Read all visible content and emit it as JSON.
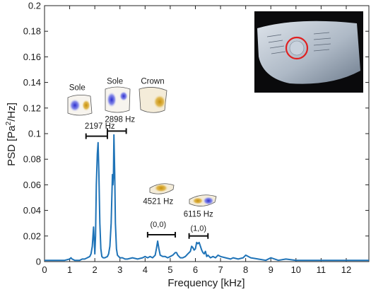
{
  "chart_data": {
    "type": "line",
    "xlabel": "Frequency [kHz]",
    "ylabel_prefix": "PSD [Pa",
    "ylabel_sup": "2",
    "ylabel_suffix": "/Hz]",
    "xlim": [
      0,
      12.9
    ],
    "ylim": [
      0,
      0.2
    ],
    "xticks": [
      0,
      1,
      2,
      3,
      4,
      5,
      6,
      7,
      8,
      9,
      10,
      11,
      12
    ],
    "yticks": [
      0,
      0.02,
      0.04,
      0.06,
      0.08,
      0.1,
      0.12,
      0.14,
      0.16,
      0.18,
      0.2
    ],
    "ytick_labels": [
      "0",
      "0.02",
      "0.04",
      "0.06",
      "0.08",
      "0.1",
      "0.12",
      "0.14",
      "0.16",
      "0.18",
      "0.2"
    ],
    "grid": false,
    "line_color": "#1f73b7",
    "series": [
      {
        "x": [
          0,
          0.3,
          0.5,
          0.8,
          1.0,
          1.05,
          1.1,
          1.2,
          1.4,
          1.5,
          1.6,
          1.7,
          1.8,
          1.85,
          1.9,
          1.95,
          2.0,
          2.03,
          2.06,
          2.1,
          2.13,
          2.16,
          2.2,
          2.24,
          2.28,
          2.33,
          2.4,
          2.5,
          2.55,
          2.6,
          2.65,
          2.7,
          2.72,
          2.74,
          2.76,
          2.79,
          2.82,
          2.86,
          2.9,
          2.95,
          3.0,
          3.1,
          3.2,
          3.3,
          3.5,
          3.7,
          3.9,
          4.0,
          4.1,
          4.2,
          4.3,
          4.4,
          4.45,
          4.5,
          4.55,
          4.6,
          4.7,
          4.8,
          4.9,
          5.0,
          5.1,
          5.2,
          5.25,
          5.3,
          5.35,
          5.4,
          5.5,
          5.6,
          5.7,
          5.8,
          5.85,
          5.9,
          5.95,
          6.0,
          6.05,
          6.1,
          6.15,
          6.2,
          6.25,
          6.3,
          6.35,
          6.4,
          6.45,
          6.5,
          6.6,
          6.7,
          6.8,
          6.9,
          7.0,
          7.2,
          7.4,
          7.5,
          7.7,
          7.9,
          8.0,
          8.2,
          8.5,
          8.8,
          9.0,
          9.3,
          9.6,
          10.0,
          10.5,
          11.0,
          11.5,
          12.0,
          12.5,
          12.9
        ],
        "y": [
          0.001,
          0.001,
          0.001,
          0.001,
          0.002,
          0.003,
          0.002,
          0.001,
          0.001,
          0.002,
          0.002,
          0.003,
          0.004,
          0.006,
          0.012,
          0.027,
          0.006,
          0.02,
          0.06,
          0.084,
          0.093,
          0.07,
          0.03,
          0.01,
          0.004,
          0.003,
          0.003,
          0.004,
          0.006,
          0.012,
          0.03,
          0.068,
          0.06,
          0.066,
          0.099,
          0.07,
          0.03,
          0.01,
          0.005,
          0.004,
          0.003,
          0.003,
          0.002,
          0.002,
          0.003,
          0.002,
          0.003,
          0.004,
          0.003,
          0.004,
          0.003,
          0.005,
          0.01,
          0.016,
          0.01,
          0.005,
          0.004,
          0.004,
          0.003,
          0.004,
          0.005,
          0.007,
          0.007,
          0.005,
          0.004,
          0.003,
          0.003,
          0.004,
          0.006,
          0.008,
          0.012,
          0.011,
          0.009,
          0.01,
          0.015,
          0.014,
          0.015,
          0.012,
          0.009,
          0.007,
          0.006,
          0.008,
          0.004,
          0.005,
          0.003,
          0.004,
          0.003,
          0.005,
          0.004,
          0.003,
          0.002,
          0.003,
          0.002,
          0.003,
          0.005,
          0.003,
          0.002,
          0.001,
          0.003,
          0.001,
          0.002,
          0.001,
          0.001,
          0.001,
          0.001,
          0.001,
          0.001,
          0.001
        ]
      }
    ],
    "annotations": [
      {
        "kind": "mode-group",
        "label": "2197 Hz",
        "x0": 1.65,
        "x1": 2.5,
        "bracket_y": 0.098,
        "text_x": 2.2,
        "text_y": 0.104
      },
      {
        "kind": "mode-group",
        "label": "2898 Hz",
        "x0": 2.5,
        "x1": 3.25,
        "bracket_y": 0.102,
        "text_x": 3.0,
        "text_y": 0.109
      },
      {
        "kind": "mode-group",
        "label": "4521 Hz",
        "x0": 4.1,
        "x1": 5.2,
        "bracket_y": 0.021,
        "text_x": 4.52,
        "text_y": 0.045
      },
      {
        "kind": "mode-group",
        "label": "6115 Hz",
        "x0": 5.75,
        "x1": 6.5,
        "bracket_y": 0.02,
        "text_x": 6.12,
        "text_y": 0.035
      },
      {
        "kind": "mode-text",
        "label": "(0,0)",
        "x": 4.52,
        "y": 0.027
      },
      {
        "kind": "mode-text",
        "label": "(1,0)",
        "x": 6.12,
        "y": 0.024
      },
      {
        "kind": "region-label",
        "label": "Sole",
        "x": 1.3,
        "y": 0.134
      },
      {
        "kind": "region-label",
        "label": "Sole",
        "x": 2.8,
        "y": 0.139
      },
      {
        "kind": "region-label",
        "label": "Crown",
        "x": 4.3,
        "y": 0.139
      }
    ]
  }
}
